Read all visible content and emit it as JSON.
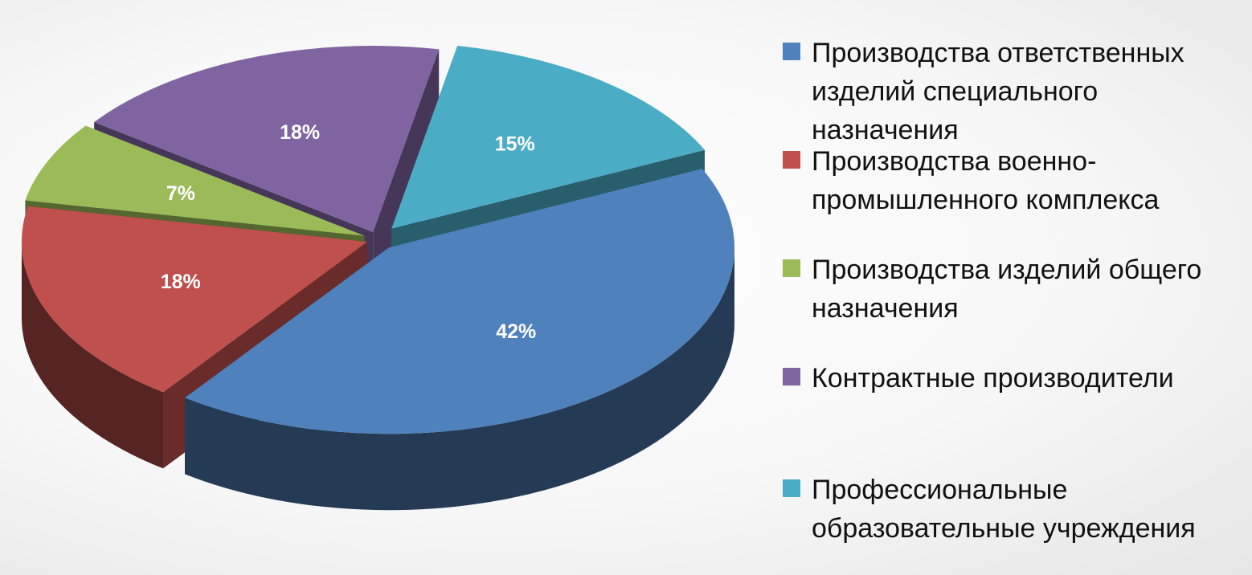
{
  "chart_data": {
    "type": "pie",
    "title": "",
    "series": [
      {
        "name": "Производства ответственных изделий специального назначения",
        "value": 42,
        "label": "42%",
        "color": "#4F81BD"
      },
      {
        "name": "Производства военно-промышленного комплекса",
        "value": 18,
        "label": "18%",
        "color": "#C0504D"
      },
      {
        "name": "Производства изделий общего назначения",
        "value": 7,
        "label": "7%",
        "color": "#9BBB59"
      },
      {
        "name": "Контрактные производители",
        "value": 18,
        "label": "18%",
        "color": "#8064A2"
      },
      {
        "name": "Профессиональные образовательные учреждения",
        "value": 15,
        "label": "15%",
        "color": "#4BACC6"
      }
    ],
    "legend_position": "right",
    "style": "3d-exploded"
  },
  "legend": {
    "items": [
      {
        "lines": [
          "Производства ответственных",
          "изделий специального",
          "назначения"
        ]
      },
      {
        "lines": [
          "Производства военно-",
          "промышленного комплекса"
        ]
      },
      {
        "lines": [
          "Производства изделий общего",
          "назначения"
        ]
      },
      {
        "lines": [
          "Контрактные производители"
        ]
      },
      {
        "lines": [
          "Профессиональные",
          "образовательные учреждения"
        ]
      }
    ]
  }
}
